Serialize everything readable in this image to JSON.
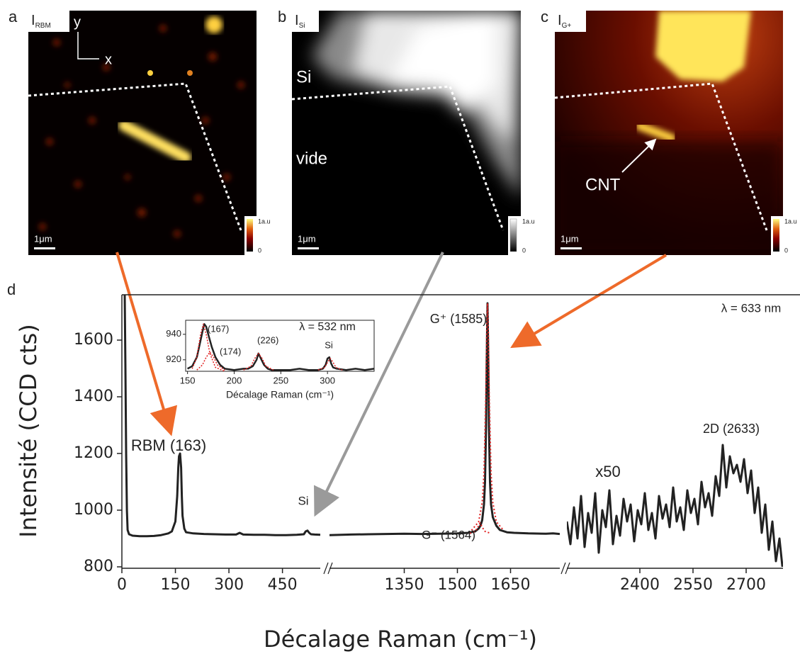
{
  "panels": [
    {
      "letter": "a",
      "title": "I",
      "sub": "RBM",
      "axes": [
        "y",
        "x"
      ],
      "scale": "1μm",
      "cbar": [
        "1a.u",
        "0"
      ]
    },
    {
      "letter": "b",
      "title": "I",
      "sub": "Si",
      "texts": [
        "Si",
        "vide"
      ],
      "scale": "1μm",
      "cbar": [
        "1a.u",
        "0"
      ]
    },
    {
      "letter": "c",
      "title": "I",
      "sub": "G+",
      "texts": [
        "CNT"
      ],
      "scale": "1μm",
      "cbar": [
        "1a.u",
        "0"
      ]
    }
  ],
  "chart_data": [
    {
      "type": "line",
      "letter": "d",
      "ylabel": "Intensité (CCD cts)",
      "xlabel": "Décalage Raman (cm⁻¹)",
      "ylim": [
        800,
        1760
      ],
      "yticks": [
        800,
        1000,
        1200,
        1400,
        1600
      ],
      "annotations": [
        "RBM (163)",
        "Si",
        "G⁻ (1564)",
        "G⁺ (1585)",
        "x50",
        "2D (2633)",
        "λ = 633 nm"
      ],
      "segments": [
        {
          "xlim": [
            0,
            556
          ],
          "xticks": [
            0,
            150,
            300,
            450
          ],
          "series": [
            {
              "color": "#222222",
              "x": [
                8,
                10,
                12,
                14,
                16,
                20,
                30,
                50,
                70,
                90,
                110,
                130,
                140,
                150,
                155,
                158,
                160,
                163,
                166,
                168,
                170,
                175,
                180,
                200,
                230,
                260,
                290,
                320,
                330,
                340,
                370,
                400,
                430,
                460,
                490,
                510,
                515,
                520,
                525,
                530,
                540,
                556
              ],
              "values": [
                1760,
                1500,
                1200,
                1000,
                930,
                915,
                910,
                908,
                908,
                909,
                912,
                918,
                925,
                960,
                1050,
                1150,
                1190,
                1200,
                1150,
                1050,
                980,
                935,
                922,
                918,
                916,
                915,
                914,
                914,
                920,
                914,
                913,
                913,
                912,
                912,
                913,
                915,
                925,
                928,
                920,
                915,
                914,
                913
              ]
            }
          ]
        },
        {
          "xlim": [
            1139,
            1789
          ],
          "xticks": [
            1350,
            1500,
            1650
          ],
          "series": [
            {
              "color": "#222222",
              "x": [
                1139,
                1200,
                1250,
                1300,
                1350,
                1400,
                1450,
                1500,
                1530,
                1550,
                1560,
                1565,
                1570,
                1575,
                1578,
                1581,
                1583,
                1585,
                1587,
                1589,
                1592,
                1595,
                1600,
                1610,
                1620,
                1640,
                1660,
                1700,
                1750,
                1770,
                1789
              ],
              "values": [
                912,
                914,
                915,
                916,
                917,
                916,
                917,
                918,
                920,
                925,
                935,
                945,
                965,
                1020,
                1100,
                1300,
                1550,
                1730,
                1550,
                1300,
                1100,
                1020,
                975,
                945,
                930,
                922,
                920,
                918,
                917,
                918,
                916
              ]
            },
            {
              "color": "#e02020",
              "dashed": true,
              "x": [
                1540,
                1560,
                1570,
                1575,
                1580,
                1583,
                1585,
                1587,
                1590,
                1595,
                1600,
                1610,
                1630
              ],
              "values": [
                929,
                959,
                1027,
                1131,
                1396,
                1649,
                1730,
                1649,
                1396,
                1131,
                1027,
                959,
                929
              ]
            },
            {
              "color": "#e02020",
              "dashed": true,
              "x": [
                1535,
                1550,
                1558,
                1564,
                1570,
                1578,
                1595
              ],
              "values": [
                918,
                925,
                940,
                955,
                940,
                925,
                918
              ]
            }
          ]
        },
        {
          "xlim": [
            2194,
            2804
          ],
          "xticks": [
            2400,
            2550,
            2700
          ],
          "series": [
            {
              "color": "#222222",
              "x": [
                2194,
                2204,
                2214,
                2224,
                2234,
                2244,
                2254,
                2264,
                2274,
                2284,
                2294,
                2304,
                2314,
                2324,
                2334,
                2344,
                2354,
                2364,
                2374,
                2384,
                2394,
                2404,
                2414,
                2424,
                2434,
                2444,
                2454,
                2464,
                2474,
                2484,
                2494,
                2504,
                2514,
                2524,
                2534,
                2544,
                2554,
                2564,
                2574,
                2584,
                2594,
                2604,
                2614,
                2624,
                2634,
                2644,
                2654,
                2664,
                2674,
                2684,
                2694,
                2704,
                2714,
                2724,
                2734,
                2744,
                2754,
                2764,
                2774,
                2784,
                2794,
                2804
              ],
              "values": [
                960,
                880,
                1010,
                900,
                1050,
                870,
                990,
                920,
                1060,
                850,
                1000,
                940,
                1070,
                880,
                980,
                910,
                1040,
                960,
                1020,
                890,
                1000,
                950,
                1060,
                930,
                990,
                900,
                1050,
                970,
                1020,
                940,
                1080,
                960,
                1010,
                930,
                1070,
                990,
                1040,
                950,
                1100,
                1010,
                1060,
                980,
                1120,
                1050,
                1230,
                1080,
                1190,
                1130,
                1160,
                1100,
                1180,
                1060,
                1140,
                990,
                1080,
                920,
                1020,
                860,
                960,
                820,
                900,
                780
              ]
            }
          ]
        }
      ]
    },
    {
      "type": "line",
      "xlabel": "Décalage Raman (cm⁻¹)",
      "xlim": [
        148,
        350
      ],
      "xticks": [
        150,
        200,
        250,
        300
      ],
      "ylim": [
        911,
        951
      ],
      "yticks": [
        920,
        940
      ],
      "annotations": [
        "(167)",
        "(174)",
        "(226)",
        "Si",
        "λ = 532 nm"
      ],
      "series": [
        {
          "color": "#222222",
          "x": [
            150,
            155,
            160,
            163,
            166,
            168,
            170,
            173,
            176,
            180,
            185,
            190,
            200,
            210,
            215,
            220,
            224,
            226,
            228,
            232,
            236,
            240,
            250,
            260,
            270,
            280,
            290,
            295,
            298,
            300,
            302,
            304,
            306,
            310,
            320,
            330,
            340,
            350
          ],
          "values": [
            913,
            915,
            922,
            932,
            942,
            948,
            946,
            938,
            930,
            922,
            916,
            913,
            912,
            913,
            913,
            915,
            920,
            925,
            922,
            916,
            913,
            912,
            912,
            912,
            913,
            912,
            912,
            913,
            916,
            921,
            922,
            917,
            914,
            913,
            912,
            913,
            912,
            913
          ]
        },
        {
          "color": "#e02020",
          "dashed": true,
          "x": [
            155,
            160,
            164,
            167,
            170,
            174,
            180,
            190
          ],
          "values": [
            913,
            922,
            940,
            948,
            940,
            925,
            914,
            911
          ]
        },
        {
          "color": "#e02020",
          "dashed": true,
          "x": [
            160,
            166,
            170,
            174,
            178,
            182,
            190
          ],
          "values": [
            912,
            916,
            922,
            926,
            922,
            916,
            912
          ]
        },
        {
          "color": "#e02020",
          "dashed": true,
          "x": [
            210,
            218,
            222,
            226,
            230,
            234,
            242
          ],
          "values": [
            912,
            915,
            921,
            925,
            921,
            915,
            912
          ]
        },
        {
          "color": "#e02020",
          "dashed": true,
          "x": [
            290,
            297,
            300,
            303,
            306,
            309,
            316
          ],
          "values": [
            912,
            914,
            918,
            921,
            918,
            914,
            912
          ]
        }
      ]
    }
  ]
}
